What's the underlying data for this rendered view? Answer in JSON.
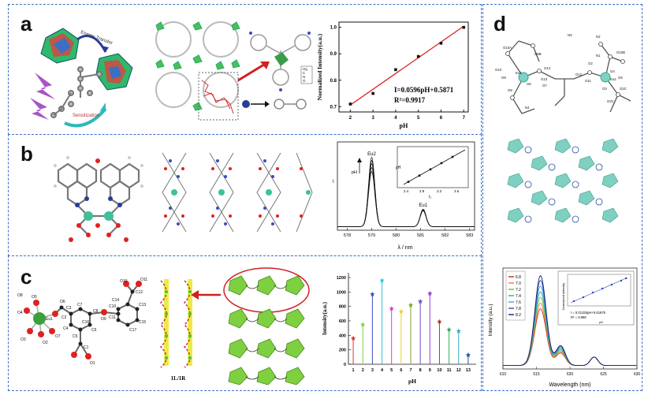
{
  "panels": {
    "a": {
      "label": "a",
      "molecule_text": {
        "transfer": "Energy Transfer",
        "sensitization": "Sensitization"
      },
      "legend_atoms": [
        "Hg",
        "C",
        "N",
        "O"
      ],
      "chart": {
        "ylabel": "Normalized Intensity(a.u.)",
        "xlabel": "pH",
        "equation": "I=0.0596pH+0.5871",
        "r2": "R²=0.9917",
        "yticks": [
          "0.7",
          "0.8",
          "0.9",
          "1.0"
        ],
        "xticks": [
          "2",
          "3",
          "4",
          "5",
          "6",
          "7"
        ]
      }
    },
    "b": {
      "label": "b",
      "chart": {
        "peak1": "Eu2",
        "peak2": "Eu1",
        "xlabel": "λ / nm",
        "ylabel": "I",
        "arrow_label": "pH",
        "xticks": [
          "578",
          "579",
          "580",
          "581",
          "582",
          "583"
        ],
        "inset": {
          "xlabel": "I₂",
          "ylabel": "pH",
          "xticks": [
            "2.4",
            "2.8",
            "3.2",
            "3.6"
          ]
        }
      }
    },
    "c": {
      "label": "c",
      "chain_label": "1L/1R",
      "atom_labels": [
        "O8",
        "O5",
        "O4",
        "Eu1",
        "O3",
        "O2",
        "O7",
        "O6",
        "C2",
        "C3",
        "C4",
        "C5",
        "C6",
        "C7",
        "C8",
        "O9",
        "C10",
        "C11",
        "C12",
        "C13",
        "C14",
        "C15",
        "C16",
        "C17",
        "C1",
        "O1",
        "O10",
        "O11"
      ],
      "chart": {
        "ylabel": "Intensity(a.u.)",
        "xlabel": "pH",
        "yticks": [
          "0",
          "200",
          "400",
          "600",
          "800",
          "1000",
          "1200"
        ],
        "xticks": [
          "1",
          "2",
          "3",
          "4",
          "5",
          "6",
          "7",
          "8",
          "9",
          "10",
          "11",
          "12",
          "13"
        ]
      }
    },
    "d": {
      "label": "d",
      "atom_labels": [
        "N3",
        "N2",
        "O10A",
        "O8B",
        "O2",
        "O4",
        "O14",
        "Eu1",
        "Eu2",
        "O13",
        "O12",
        "O11",
        "O3",
        "O5",
        "O6",
        "O7",
        "O9",
        "O8",
        "N4",
        "O2C",
        "O2C",
        "O10",
        "N1",
        "O10B"
      ],
      "chart": {
        "ylabel": "Intensity (a.u.)",
        "xlabel": "Wavelength (nm)",
        "legend": [
          "6.8",
          "7.0",
          "7.2",
          "7.4",
          "7.6",
          "7.8",
          "8.2"
        ],
        "xticks": [
          "610",
          "615",
          "620",
          "625",
          "630"
        ],
        "inset": {
          "ylabel": "Normalized intensity",
          "xlabel": "pH",
          "equation": "I = 0.01325pH+0.61876",
          "r2": "R² = 0.986"
        }
      }
    }
  },
  "chart_data": [
    {
      "type": "scatter",
      "panel": "a",
      "x": [
        2,
        3,
        4,
        5,
        6,
        7
      ],
      "y": [
        0.71,
        0.75,
        0.84,
        0.89,
        0.94,
        1.0
      ],
      "fit": {
        "slope": 0.0596,
        "intercept": 0.5871
      },
      "xlabel": "pH",
      "ylabel": "Normalized Intensity(a.u.)",
      "xlim": [
        1.5,
        7.2
      ],
      "ylim": [
        0.68,
        1.02
      ]
    },
    {
      "type": "line",
      "panel": "b",
      "series": [
        {
          "peak_x": 579.0,
          "peak_y": 0.88,
          "peak2_y": 0.22
        },
        {
          "peak_x": 579.0,
          "peak_y": 0.84,
          "peak2_y": 0.22
        },
        {
          "peak_x": 579.0,
          "peak_y": 0.8,
          "peak2_y": 0.21
        },
        {
          "peak_x": 579.0,
          "peak_y": 0.75,
          "peak2_y": 0.21
        },
        {
          "peak_x": 579.0,
          "peak_y": 0.7,
          "peak2_y": 0.2
        }
      ],
      "peak2_x": 581.1,
      "xlim": [
        577.6,
        583.2
      ],
      "xlabel": "λ / nm"
    },
    {
      "type": "bar",
      "panel": "c",
      "categories": [
        "1",
        "2",
        "3",
        "4",
        "5",
        "6",
        "7",
        "8",
        "9",
        "10",
        "11",
        "12",
        "13"
      ],
      "values": [
        360,
        550,
        970,
        1160,
        770,
        730,
        820,
        870,
        980,
        590,
        480,
        460,
        130
      ],
      "colors": [
        "#e83030",
        "#7ed040",
        "#3b4cc0",
        "#30c8d8",
        "#d040c0",
        "#f0d020",
        "#80a030",
        "#6a50c8",
        "#9040d0",
        "#c03030",
        "#30b060",
        "#30a8d0",
        "#2050b0"
      ],
      "xlabel": "pH",
      "ylabel": "Intensity(a.u.)",
      "ylim": [
        0,
        1200
      ]
    },
    {
      "type": "line",
      "panel": "d",
      "series": [
        {
          "name": "6.8",
          "color": "#d02020",
          "peak": 0.6
        },
        {
          "name": "7.0",
          "color": "#f08020",
          "peak": 0.66
        },
        {
          "name": "7.2",
          "color": "#60c040",
          "peak": 0.72
        },
        {
          "name": "7.4",
          "color": "#20b0a0",
          "peak": 0.78
        },
        {
          "name": "7.6",
          "color": "#40a0e0",
          "peak": 0.84
        },
        {
          "name": "7.8",
          "color": "#3050c0",
          "peak": 0.9
        },
        {
          "name": "8.2",
          "color": "#202060",
          "peak": 0.95
        }
      ],
      "xlim": [
        610,
        630
      ],
      "xlabel": "Wavelength (nm)",
      "ylabel": "Intensity (a.u.)"
    }
  ]
}
